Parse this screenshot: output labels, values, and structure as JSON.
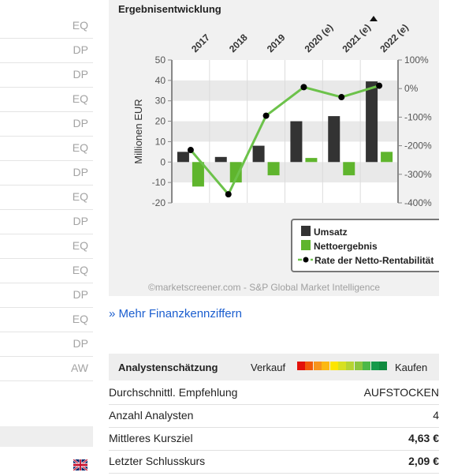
{
  "left_column": {
    "codes": [
      "EQ",
      "DP",
      "DP",
      "EQ",
      "DP",
      "EQ",
      "DP",
      "EQ",
      "DP",
      "EQ",
      "EQ",
      "DP",
      "EQ",
      "DP",
      "AW"
    ]
  },
  "chart_panel": {
    "heading": "Ergebnisentwicklung",
    "credit": "©marketscreener.com - S&P Global Market Intelligence"
  },
  "chart_data": {
    "type": "bar",
    "categories": [
      "2017",
      "2018",
      "2019",
      "2020 (e)",
      "2021 (e)",
      "2022 (e)"
    ],
    "ylabel": "Millionen EUR",
    "ylim": [
      -20,
      50
    ],
    "yticks": [
      50,
      40,
      30,
      20,
      10,
      0,
      -10,
      -20
    ],
    "y2lim": [
      -400,
      100
    ],
    "y2ticks": [
      "100%",
      "0%",
      "-100%",
      "-200%",
      "-300%",
      "-400%"
    ],
    "y2values": [
      100,
      0,
      -100,
      -200,
      -300,
      -400
    ],
    "grid": "horizontal bands",
    "legend_position": "bottom",
    "series": [
      {
        "name": "Umsatz",
        "kind": "bar",
        "color": "#333333",
        "values": [
          5,
          2.5,
          8,
          20,
          22.5,
          39.5
        ]
      },
      {
        "name": "Nettoergebnis",
        "kind": "bar",
        "color": "#5fb52d",
        "values": [
          -12,
          -10,
          -6.5,
          2,
          -6.5,
          5
        ]
      },
      {
        "name": "Rate der Netto-Rentabilität",
        "kind": "line",
        "color": "#6cc24a",
        "values": [
          -215,
          -370,
          -95,
          5,
          -30,
          10
        ]
      }
    ]
  },
  "more_link": "» Mehr Finanzkennziffern",
  "rating": {
    "title": "Analystenschätzung",
    "sell_label": "Verkauf",
    "buy_label": "Kaufen",
    "scale_colors": [
      "#e3120b",
      "#f15a0a",
      "#f7941d",
      "#fcb813",
      "#fde500",
      "#d7e021",
      "#b6d433",
      "#8cc63f",
      "#4db848",
      "#169a4a",
      "#0f8a3e"
    ],
    "position": 0.85
  },
  "info_rows": [
    {
      "label": "Durchschnittl. Empfehlung",
      "value": "AUFSTOCKEN",
      "bold": false
    },
    {
      "label": "Anzahl Analysten",
      "value": "4",
      "bold": false
    },
    {
      "label": "Mittleres Kursziel",
      "value": "4,63 €",
      "bold": true
    },
    {
      "label": "Letzter Schlusskurs",
      "value": "2,09 €",
      "bold": true
    }
  ]
}
